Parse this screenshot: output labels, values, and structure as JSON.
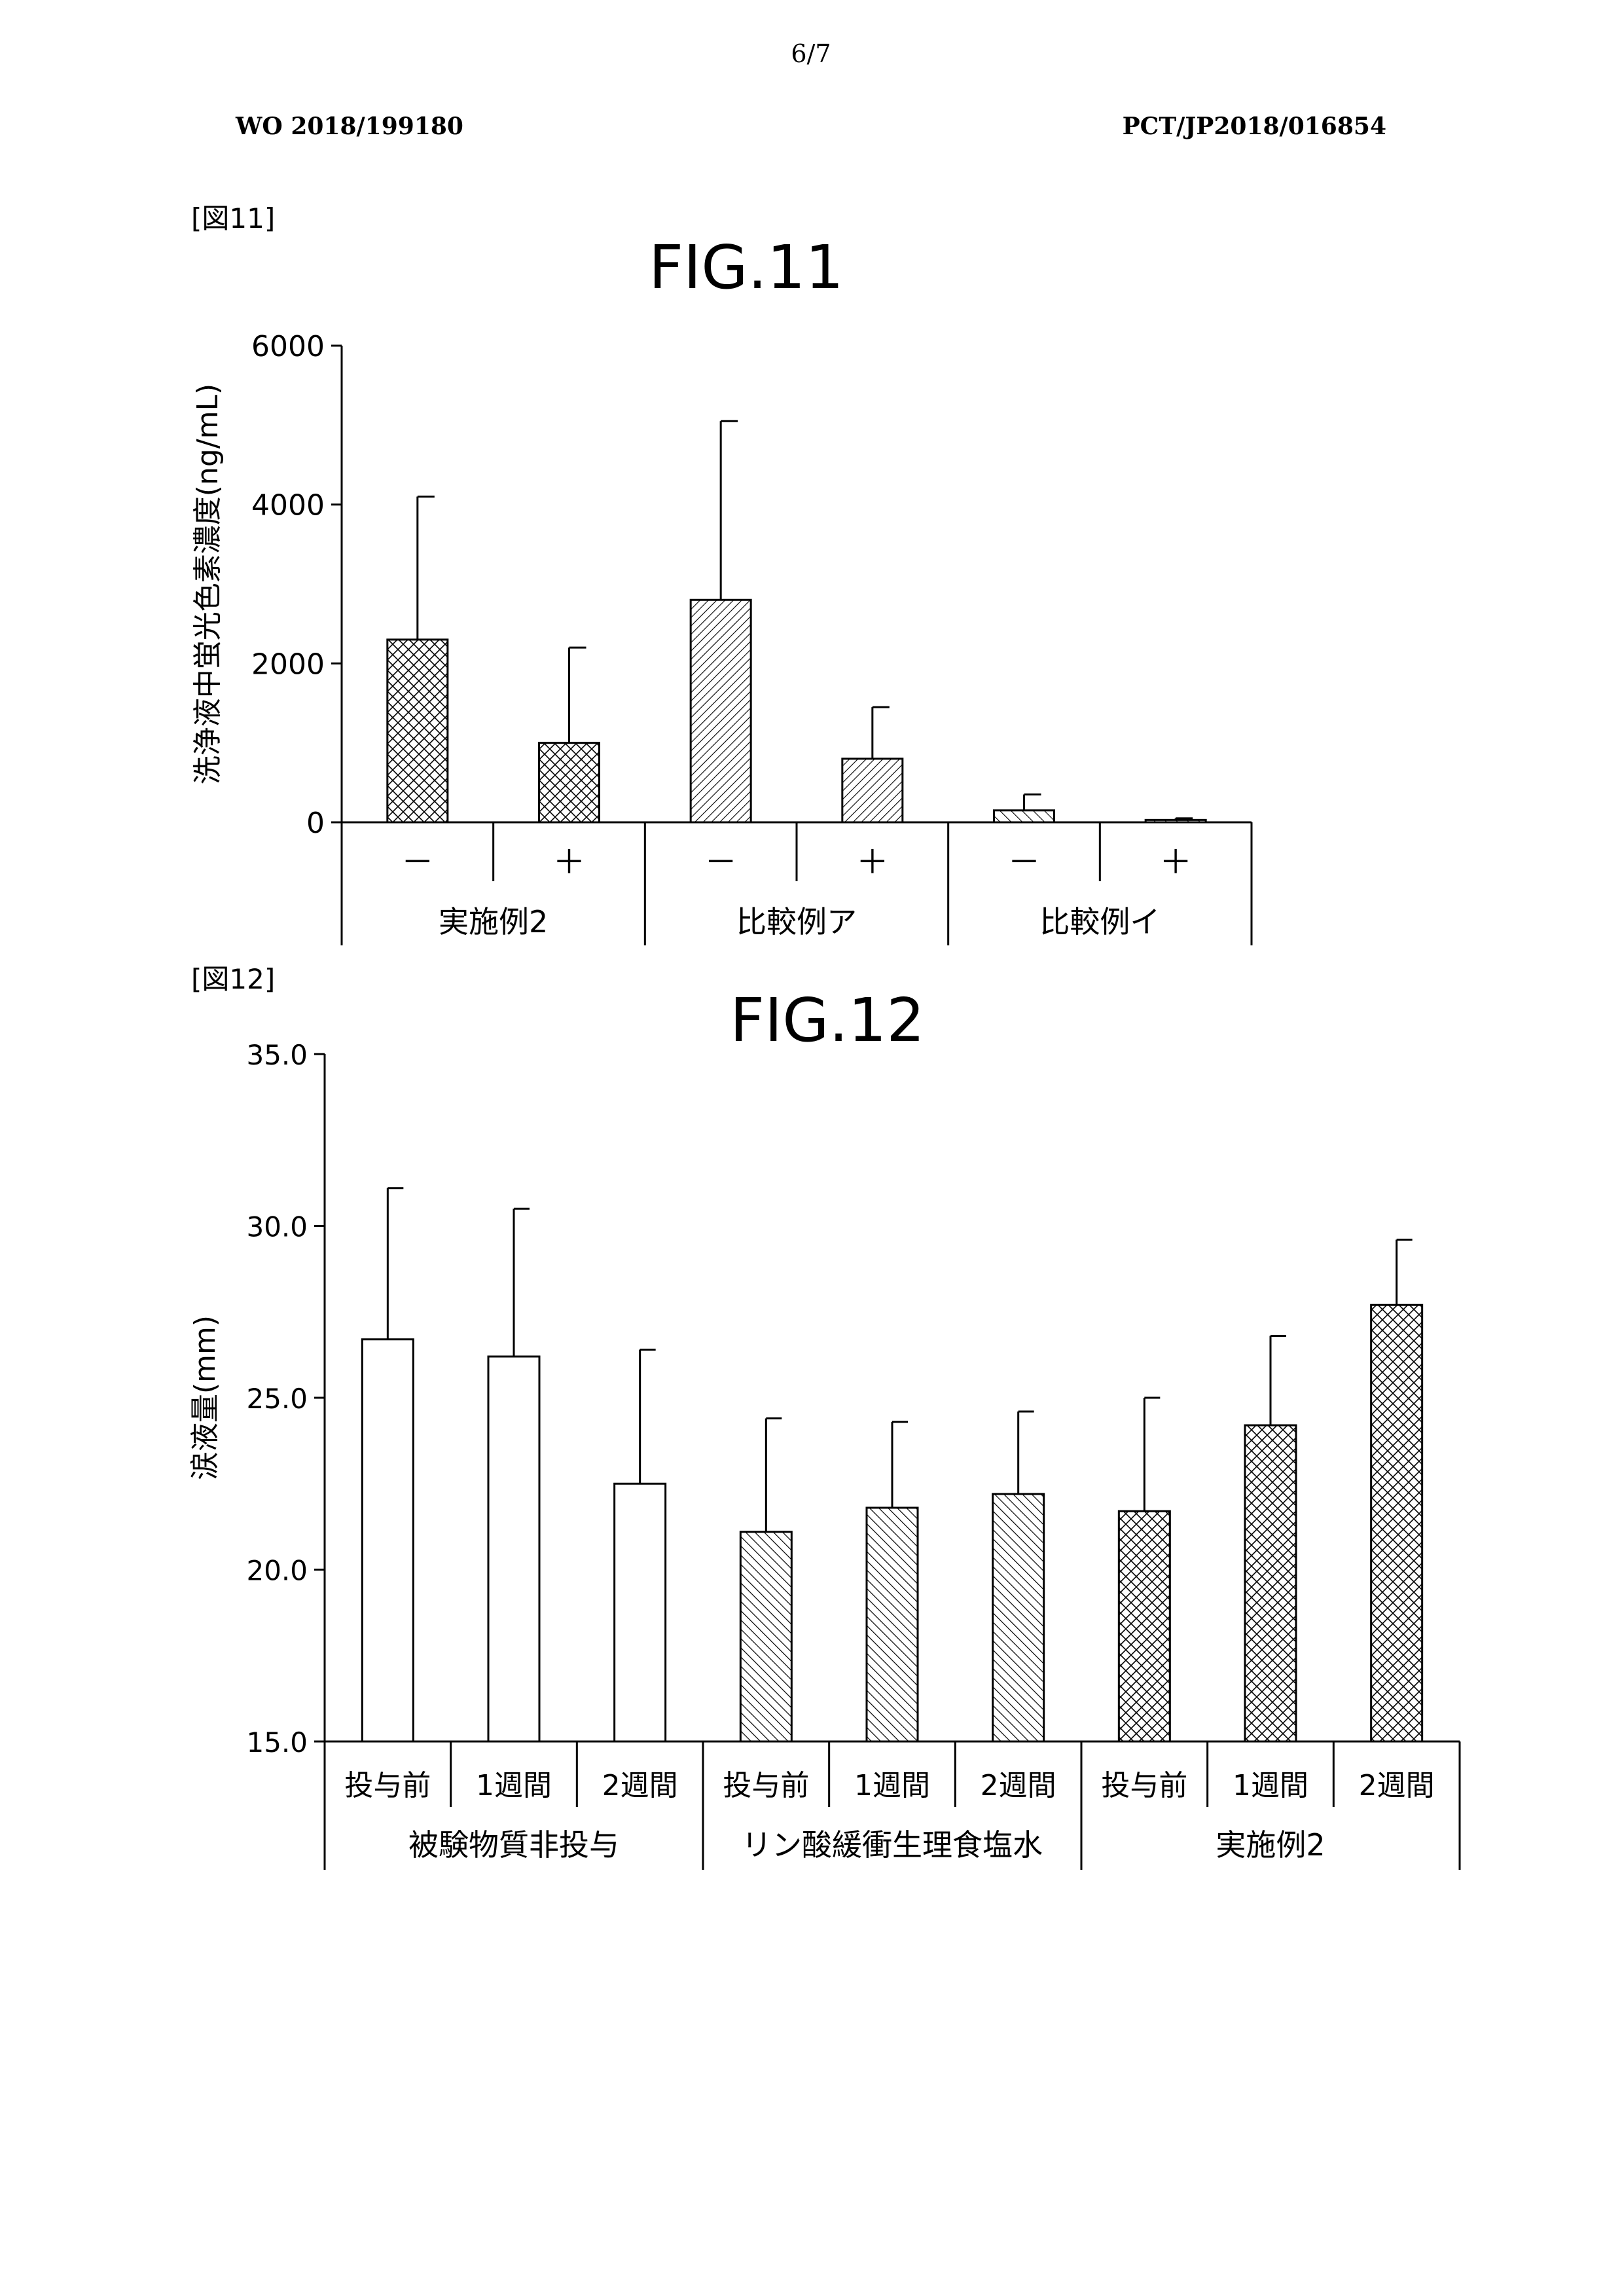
{
  "header": {
    "page_number": "6/7",
    "publication_left": "WO 2018/199180",
    "publication_right": "PCT/JP2018/016854"
  },
  "figure_labels": {
    "fig11": "[図11]",
    "fig12": "[図12]"
  },
  "chart_data": [
    {
      "type": "bar",
      "title": "FIG.11",
      "ylabel": "洗浄液中蛍光色素濃度(ng/mL)",
      "ylim": [
        0,
        6000
      ],
      "yticks": [
        "0",
        "2000",
        "4000",
        "6000"
      ],
      "groups": [
        "実施例2",
        "比較例ア",
        "比較例イ"
      ],
      "categories": [
        "－",
        "＋",
        "－",
        "＋",
        "－",
        "＋"
      ],
      "values": [
        2300,
        1000,
        2800,
        800,
        150,
        30
      ],
      "errors": [
        1800,
        1200,
        2250,
        650,
        200,
        20
      ],
      "patterns": [
        "crosshatch",
        "crosshatch",
        "diag-dense",
        "diag-dense",
        "diag-sparse",
        "diag-sparse"
      ]
    },
    {
      "type": "bar",
      "title": "FIG.12",
      "ylabel": "涙液量(mm)",
      "ylim": [
        15.0,
        35.0
      ],
      "yticks": [
        "15.0",
        "20.0",
        "25.0",
        "30.0",
        "35.0"
      ],
      "groups": [
        "被験物質非投与",
        "リン酸緩衝生理食塩水",
        "実施例2"
      ],
      "categories": [
        "投与前",
        "1週間",
        "2週間",
        "投与前",
        "1週間",
        "2週間",
        "投与前",
        "1週間",
        "2週間"
      ],
      "values": [
        26.7,
        26.2,
        22.5,
        21.1,
        21.8,
        22.2,
        21.7,
        24.2,
        27.7
      ],
      "errors": [
        4.4,
        4.3,
        3.9,
        3.3,
        2.5,
        2.4,
        3.3,
        2.6,
        1.9
      ],
      "patterns": [
        "empty",
        "empty",
        "empty",
        "diag",
        "diag",
        "diag",
        "crosshatch",
        "crosshatch",
        "crosshatch"
      ]
    }
  ]
}
